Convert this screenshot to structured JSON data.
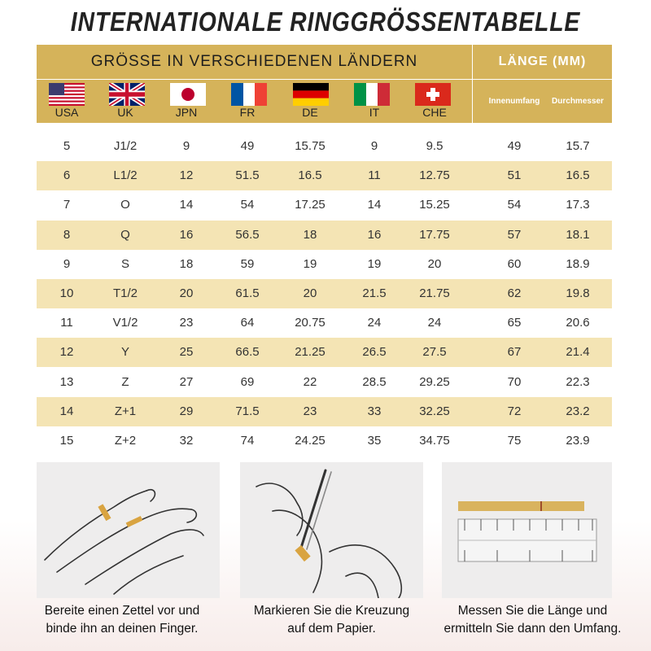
{
  "header": {
    "title": "INTERNATIONALE RINGGRÖSSENTABELLE"
  },
  "table": {
    "left_header": "GRÖSSE IN VERSCHIEDENEN LÄNDERN",
    "right_header": "LÄNGE (MM)",
    "countries": [
      "USA",
      "UK",
      "JPN",
      "FR",
      "DE",
      "IT",
      "CHE"
    ],
    "length_columns": [
      "Innenumfang",
      "Durchmesser"
    ],
    "rows": [
      [
        5,
        "J1/2",
        9,
        49,
        15.75,
        9,
        9.5,
        49,
        15.7
      ],
      [
        6,
        "L1/2",
        12,
        51.5,
        16.5,
        11,
        12.75,
        51,
        16.5
      ],
      [
        7,
        "O",
        14,
        54,
        17.25,
        14,
        15.25,
        54,
        17.3
      ],
      [
        8,
        "Q",
        16,
        56.5,
        18,
        16,
        17.75,
        57,
        18.1
      ],
      [
        9,
        "S",
        18,
        59,
        19,
        19,
        20,
        60,
        18.9
      ],
      [
        10,
        "T1/2",
        20,
        61.5,
        20,
        21.5,
        21.75,
        62,
        19.8
      ],
      [
        11,
        "V1/2",
        23,
        64,
        20.75,
        24,
        24,
        65,
        20.6
      ],
      [
        12,
        "Y",
        25,
        66.5,
        21.25,
        26.5,
        27.5,
        67,
        21.4
      ],
      [
        13,
        "Z",
        27,
        69,
        22,
        28.5,
        29.25,
        70,
        22.3
      ],
      [
        14,
        "Z+1",
        29,
        71.5,
        23,
        33,
        32.25,
        72,
        23.2
      ],
      [
        15,
        "Z+2",
        32,
        74,
        24.25,
        35,
        34.75,
        75,
        23.9
      ]
    ]
  },
  "steps": [
    {
      "lines": [
        "Bereite einen Zettel vor und",
        "binde ihn an deinen Finger."
      ]
    },
    {
      "lines": [
        "Markieren Sie die Kreuzung",
        "auf dem Papier."
      ]
    },
    {
      "lines": [
        "Messen Sie die Länge und",
        "ermitteln Sie dann den Umfang."
      ]
    }
  ]
}
